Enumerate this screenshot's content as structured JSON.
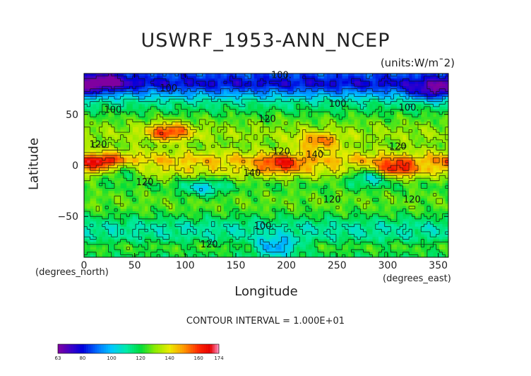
{
  "chart_data": {
    "type": "heatmap",
    "title": "USWRF_1953-ANN_NCEP",
    "units": "(units:W/m¯2)",
    "xlabel": "Longitude",
    "ylabel": "Latitude",
    "x_unit_label": "(degrees_east)",
    "y_unit_label": "(degrees_north)",
    "xlim": [
      0,
      360
    ],
    "ylim": [
      -90,
      90
    ],
    "x_ticks": [
      0,
      50,
      100,
      150,
      200,
      250,
      300,
      350
    ],
    "y_ticks": [
      50,
      0,
      -50
    ],
    "x_tick_labels": [
      "0",
      "50",
      "100",
      "150",
      "200",
      "250",
      "300",
      "350"
    ],
    "y_tick_labels": [
      "50",
      "0",
      "−50"
    ],
    "contour_interval": "CONTOUR INTERVAL = 1.000E+01",
    "contour_labels": [
      {
        "text": "100.",
        "lon": 195,
        "lat": 88
      },
      {
        "text": "100.",
        "lon": 85,
        "lat": 75
      },
      {
        "text": "100.",
        "lon": 30,
        "lat": 54
      },
      {
        "text": "100.",
        "lon": 252,
        "lat": 60
      },
      {
        "text": "100.",
        "lon": 321,
        "lat": 56
      },
      {
        "text": "120",
        "lon": 14,
        "lat": 20
      },
      {
        "text": "120",
        "lon": 181,
        "lat": 45
      },
      {
        "text": "120",
        "lon": 195,
        "lat": 13
      },
      {
        "text": "140",
        "lon": 228,
        "lat": 10
      },
      {
        "text": "120",
        "lon": 310,
        "lat": 18
      },
      {
        "text": "140",
        "lon": 166,
        "lat": -8
      },
      {
        "text": "120",
        "lon": 60,
        "lat": -17
      },
      {
        "text": "120",
        "lon": 245,
        "lat": -34
      },
      {
        "text": "120",
        "lon": 324,
        "lat": -34
      },
      {
        "text": "100.",
        "lon": 178,
        "lat": -60
      },
      {
        "text": "120.",
        "lon": 125,
        "lat": -78
      }
    ],
    "colorbar": {
      "min": 63,
      "max": 174,
      "tick_values": [
        63,
        80,
        100,
        120,
        140,
        160,
        174
      ],
      "tick_labels": [
        "63",
        "80",
        "100",
        "120",
        "140",
        "160",
        "174"
      ]
    },
    "field_features": [
      {
        "desc": "zonal background",
        "value_by_lat": [
          [
            90,
            88
          ],
          [
            80,
            78
          ],
          [
            72,
            92
          ],
          [
            62,
            112
          ],
          [
            50,
            122
          ],
          [
            40,
            128
          ],
          [
            30,
            132
          ],
          [
            20,
            128
          ],
          [
            12,
            136
          ],
          [
            5,
            146
          ],
          [
            0,
            140
          ],
          [
            -5,
            140
          ],
          [
            -12,
            130
          ],
          [
            -20,
            122
          ],
          [
            -30,
            126
          ],
          [
            -40,
            126
          ],
          [
            -50,
            120
          ],
          [
            -60,
            110
          ],
          [
            -70,
            112
          ],
          [
            -80,
            124
          ],
          [
            -90,
            118
          ]
        ]
      },
      {
        "lon": 18,
        "lat": 2,
        "amp": 30,
        "desc": "Africa high"
      },
      {
        "lon": 84,
        "lat": 33,
        "amp": 30,
        "desc": "Tibet high"
      },
      {
        "lon": 232,
        "lat": 23,
        "amp": 24,
        "desc": "Mexico high"
      },
      {
        "lon": 305,
        "lat": -4,
        "amp": 32,
        "desc": "Brazil high"
      },
      {
        "lon": 195,
        "lat": 1,
        "amp": 22,
        "desc": "equatorial band high"
      },
      {
        "lon": 285,
        "lat": -10,
        "amp": -30,
        "desc": "Andes low"
      },
      {
        "lon": 35,
        "lat": -5,
        "amp": -22,
        "desc": "East Africa low"
      },
      {
        "lon": 118,
        "lat": -22,
        "amp": -20,
        "desc": "Australia low"
      },
      {
        "lon": 190,
        "lat": -80,
        "amp": -28,
        "desc": "Antarctica low"
      },
      {
        "lon": 345,
        "lat": 72,
        "amp": -22,
        "desc": "Greenland low"
      },
      {
        "lon": 20,
        "lat": 82,
        "amp": -24,
        "desc": "Arctic low"
      }
    ]
  }
}
